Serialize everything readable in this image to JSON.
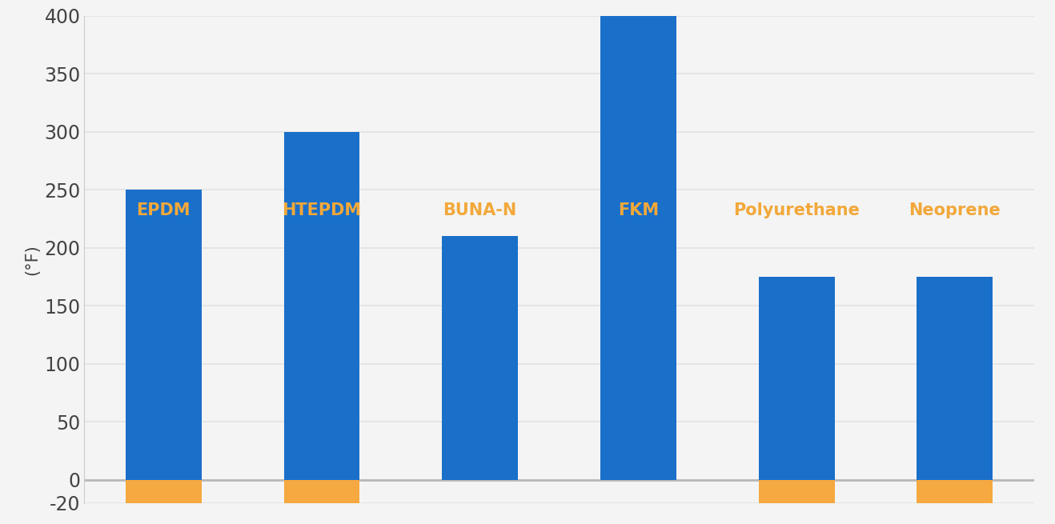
{
  "chart_data": {
    "type": "bar",
    "y_label": "(°F)",
    "categories": [
      "EPDM",
      "HTEPDM",
      "BUNA-N",
      "FKM",
      "Polyurethane",
      "Neoprene"
    ],
    "series": [
      {
        "color": "#1a6fc9",
        "values": [
          250,
          300,
          210,
          400,
          175,
          175
        ]
      },
      {
        "color": "#f5a940",
        "values": [
          -20,
          -20,
          null,
          null,
          -20,
          -20
        ]
      }
    ],
    "label_color": "#f2a83a",
    "ylim": [
      -20,
      400
    ],
    "yticks": [
      -20,
      0,
      50,
      100,
      150,
      200,
      250,
      300,
      350,
      400
    ],
    "grid": true,
    "tick_labels": "y"
  }
}
